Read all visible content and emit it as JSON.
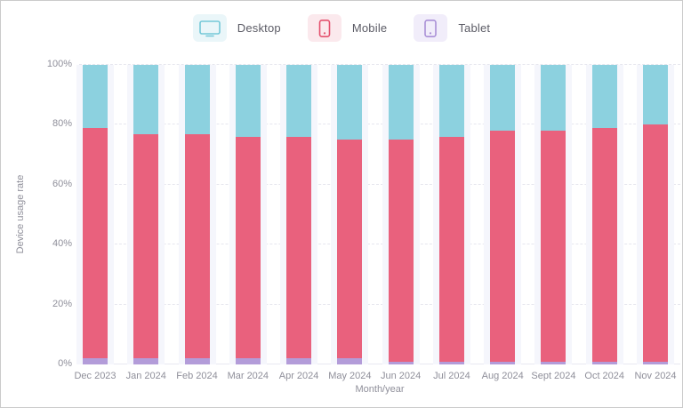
{
  "legend": {
    "items": [
      {
        "label": "Desktop",
        "icon": "desktop-icon"
      },
      {
        "label": "Mobile",
        "icon": "mobile-icon"
      },
      {
        "label": "Tablet",
        "icon": "tablet-icon"
      }
    ]
  },
  "axes": {
    "y_label": "Device usage rate",
    "x_label": "Month/year",
    "y_ticks": [
      "0%",
      "20%",
      "40%",
      "60%",
      "80%",
      "100%"
    ]
  },
  "colors": {
    "desktop": "#8CD1DF",
    "mobile": "#E9617D",
    "tablet": "#B39CD9",
    "chip_desktop_bg": "#EAF6F9",
    "chip_mobile_bg": "#FBE9ED",
    "chip_tablet_bg": "#F1EDFA",
    "icon_desktop": "#74C8D8",
    "icon_mobile": "#E4516E",
    "icon_tablet": "#A98FD6",
    "band": "#F5F6FC",
    "grid": "#E6E6EE",
    "axisline": "#E9E9F1",
    "axis_text": "#8F8F9A",
    "legend_text": "#5C5C66",
    "frame_border": "#CBCBCB"
  },
  "chart_data": {
    "type": "bar",
    "stacked": true,
    "title": "",
    "xlabel": "Month/year",
    "ylabel": "Device usage rate",
    "ylim": [
      0,
      100
    ],
    "grid": "dashed-horizontal",
    "legend_position": "top",
    "categories": [
      "Dec 2023",
      "Jan 2024",
      "Feb 2024",
      "Mar 2024",
      "Apr 2024",
      "May 2024",
      "Jun 2024",
      "Jul 2024",
      "Aug 2024",
      "Sept 2024",
      "Oct 2024",
      "Nov 2024"
    ],
    "series": [
      {
        "name": "Desktop",
        "color": "#8CD1DF",
        "values": [
          21,
          23,
          23,
          24,
          24,
          25,
          25,
          24,
          22,
          22,
          21,
          20
        ]
      },
      {
        "name": "Mobile",
        "color": "#E9617D",
        "values": [
          77,
          75,
          75,
          74,
          74,
          73,
          74,
          75,
          77,
          77,
          78,
          79
        ]
      },
      {
        "name": "Tablet",
        "color": "#B39CD9",
        "values": [
          2,
          2,
          2,
          2,
          2,
          2,
          1,
          1,
          1,
          1,
          1,
          1
        ]
      }
    ],
    "stack_order_bottom_to_top": [
      "Tablet",
      "Mobile",
      "Desktop"
    ],
    "y_tick_values": [
      0,
      20,
      40,
      60,
      80,
      100
    ]
  }
}
